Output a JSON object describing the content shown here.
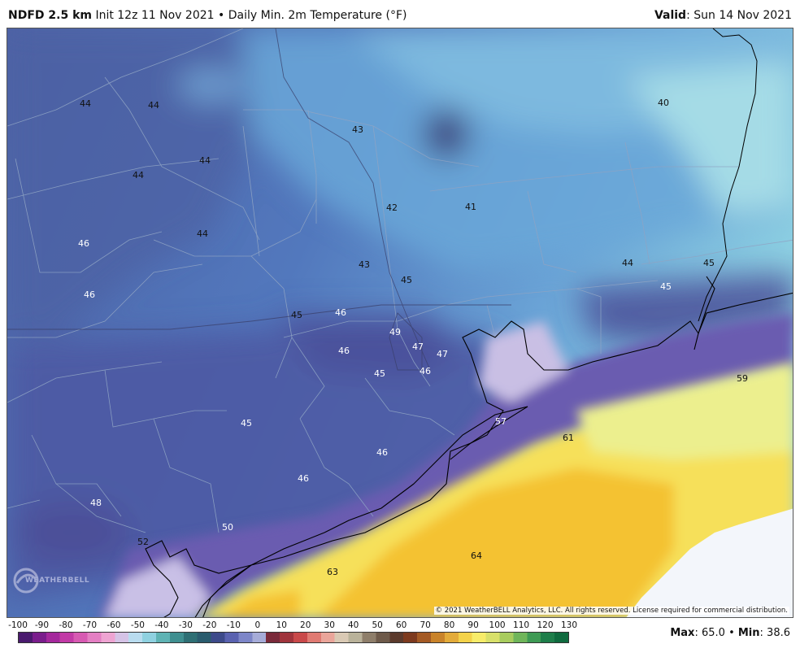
{
  "header": {
    "model": "NDFD 2.5 km",
    "init": "Init 12z 11 Nov 2021",
    "bullet": "•",
    "product": "Daily Min. 2m Temperature (°F)",
    "valid_label": "Valid",
    "valid_value": ": Sun 14 Nov 2021"
  },
  "copyright": "© 2021 WeatherBELL Analytics, LLC. All rights reserved. License required for commercial distribution.",
  "logo_text": "WEATHERBELL",
  "colors": {
    "cold_deep": "#46498f",
    "cold_mid": "#4f66a8",
    "cool": "#5a8fce",
    "cool_light": "#7fb8dc",
    "pale": "#a8dde6",
    "coastal_purple": "#6a5bb0",
    "warm_yellow": "#f6e05a",
    "warm_gold": "#f4c232",
    "warm_pale": "#ecef8e",
    "white_sea": "#f3f6fb",
    "border_line": "#8fa4c4",
    "coast_line": "#000000"
  },
  "map_labels": [
    {
      "text": "44",
      "light": false
    },
    {
      "text": "44",
      "light": false
    },
    {
      "text": "44",
      "light": false
    },
    {
      "text": "44",
      "light": false
    },
    {
      "text": "43",
      "light": false
    },
    {
      "text": "40",
      "light": false
    },
    {
      "text": "42",
      "light": false
    },
    {
      "text": "41",
      "light": false
    },
    {
      "text": "46",
      "light": true
    },
    {
      "text": "44",
      "light": false
    },
    {
      "text": "43",
      "light": false
    },
    {
      "text": "44",
      "light": false
    },
    {
      "text": "45",
      "light": false
    },
    {
      "text": "45",
      "light": false
    },
    {
      "text": "45",
      "light": true
    },
    {
      "text": "46",
      "light": true
    },
    {
      "text": "45",
      "light": false
    },
    {
      "text": "46",
      "light": true
    },
    {
      "text": "49",
      "light": true
    },
    {
      "text": "47",
      "light": true
    },
    {
      "text": "47",
      "light": true
    },
    {
      "text": "46",
      "light": true
    },
    {
      "text": "46",
      "light": true
    },
    {
      "text": "45",
      "light": true
    },
    {
      "text": "59",
      "light": false
    },
    {
      "text": "57",
      "light": true
    },
    {
      "text": "61",
      "light": false
    },
    {
      "text": "45",
      "light": true
    },
    {
      "text": "46",
      "light": true
    },
    {
      "text": "46",
      "light": true
    },
    {
      "text": "48",
      "light": true
    },
    {
      "text": "50",
      "light": true
    },
    {
      "text": "52",
      "light": false
    },
    {
      "text": "64",
      "light": false
    },
    {
      "text": "63",
      "light": false
    }
  ],
  "scale": {
    "ticks": [
      "-100",
      "-90",
      "-80",
      "-70",
      "-60",
      "-50",
      "-40",
      "-30",
      "-20",
      "-10",
      "0",
      "10",
      "20",
      "30",
      "40",
      "50",
      "60",
      "70",
      "80",
      "90",
      "100",
      "110",
      "120",
      "130"
    ],
    "colors": [
      "#4a1a6e",
      "#7a1d8c",
      "#a4289c",
      "#c23aa6",
      "#d75ab2",
      "#e47fc3",
      "#eea4d2",
      "#d5c3e6",
      "#b9dcef",
      "#8fd1e0",
      "#5fb3b4",
      "#3f8f90",
      "#2e6f74",
      "#2a5c6e",
      "#3d4a8a",
      "#5a62b0",
      "#7d86c8",
      "#a6acd8",
      "#7a2a3a",
      "#a0343c",
      "#c9494a",
      "#e07a72",
      "#eaa59a",
      "#d9c9b4",
      "#b9b29a",
      "#8e7e6a",
      "#6e5a4a",
      "#5b3a2c",
      "#7d3a1e",
      "#a45a24",
      "#c9832a",
      "#e3ab3a",
      "#f3d24a",
      "#f7ec6a",
      "#d8e06a",
      "#a8cc5e",
      "#6fb55a",
      "#3e9a54",
      "#1e7e4a",
      "#0f6a3e"
    ]
  },
  "stats": {
    "max_label": "Max",
    "max_value": ": 65.0",
    "bullet": "•",
    "min_label": "Min",
    "min_value": ": 38.6"
  }
}
